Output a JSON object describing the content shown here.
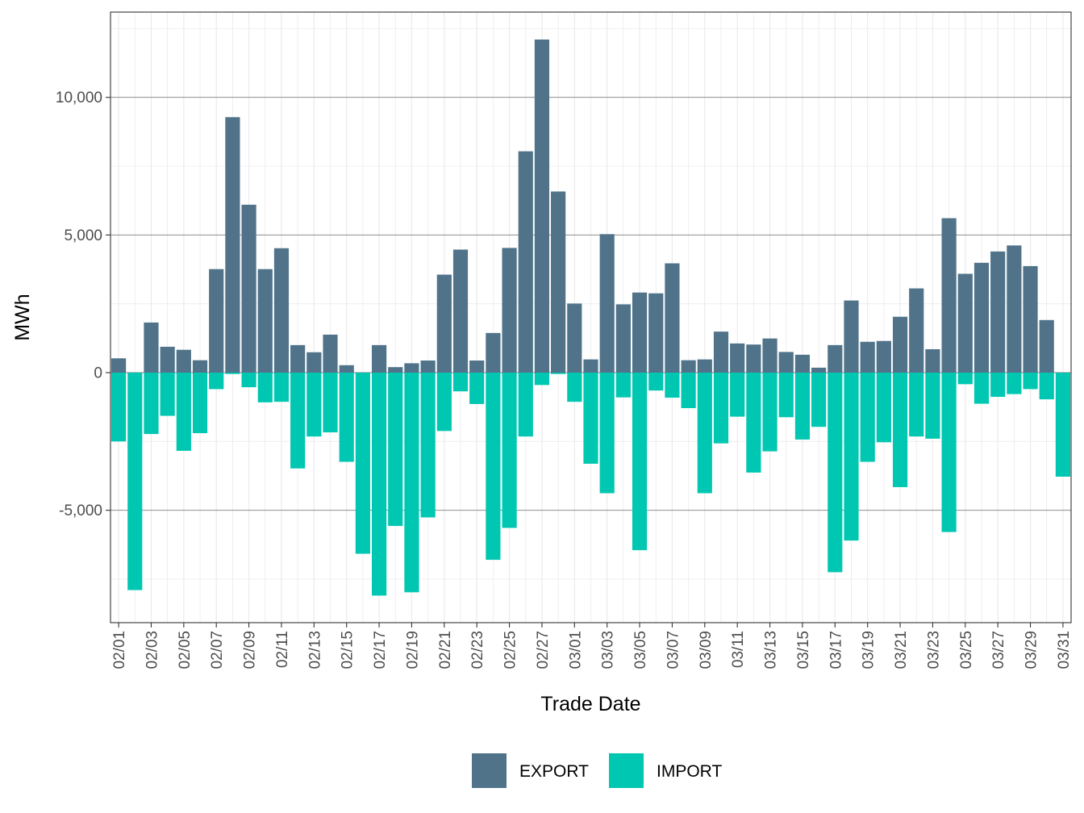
{
  "chart_data": {
    "type": "bar",
    "title": "",
    "xlabel": "Trade Date",
    "ylabel": "MWh",
    "ylim": [
      -9000,
      13000
    ],
    "y_ticks": [
      -5000,
      0,
      5000,
      10000
    ],
    "y_tick_labels": [
      "-5,000",
      "0",
      "5,000",
      "10,000"
    ],
    "categories": [
      "02/01",
      "02/02",
      "02/03",
      "02/04",
      "02/05",
      "02/06",
      "02/07",
      "02/08",
      "02/09",
      "02/10",
      "02/11",
      "02/12",
      "02/13",
      "02/14",
      "02/15",
      "02/16",
      "02/17",
      "02/18",
      "02/19",
      "02/20",
      "02/21",
      "02/22",
      "02/23",
      "02/24",
      "02/25",
      "02/26",
      "02/27",
      "02/28",
      "03/01",
      "03/02",
      "03/03",
      "03/04",
      "03/05",
      "03/06",
      "03/07",
      "03/08",
      "03/09",
      "03/10",
      "03/11",
      "03/12",
      "03/13",
      "03/14",
      "03/15",
      "03/16",
      "03/17",
      "03/18",
      "03/19",
      "03/20",
      "03/21",
      "03/22",
      "03/23",
      "03/24",
      "03/25",
      "03/26",
      "03/27",
      "03/28",
      "03/29",
      "03/30",
      "03/31"
    ],
    "x_tick_labels": [
      "02/01",
      "02/03",
      "02/05",
      "02/07",
      "02/09",
      "02/11",
      "02/13",
      "02/15",
      "02/17",
      "02/19",
      "02/21",
      "02/23",
      "02/25",
      "02/27",
      "03/01",
      "03/03",
      "03/05",
      "03/07",
      "03/09",
      "03/11",
      "03/13",
      "03/15",
      "03/17",
      "03/19",
      "03/21",
      "03/23",
      "03/25",
      "03/27",
      "03/29",
      "03/31"
    ],
    "grid": true,
    "legend_position": "bottom",
    "series": [
      {
        "name": "EXPORT",
        "color": "#50738a",
        "values": [
          520,
          0,
          1820,
          940,
          830,
          450,
          3760,
          9280,
          6100,
          3760,
          4520,
          1000,
          740,
          1380,
          270,
          0,
          1000,
          200,
          340,
          440,
          3560,
          4470,
          440,
          1440,
          4530,
          8040,
          12100,
          6580,
          2510,
          480,
          5030,
          2480,
          2910,
          2880,
          3970,
          450,
          480,
          1490,
          1060,
          1020,
          1240,
          750,
          650,
          180,
          1000,
          2620,
          1120,
          1150,
          2030,
          3060,
          850,
          5610,
          3590,
          3990,
          4400,
          4620,
          3870,
          1910,
          0
        ]
      },
      {
        "name": "IMPORT",
        "color": "#00c7b1",
        "values": [
          -2500,
          -7900,
          -2230,
          -1570,
          -2840,
          -2200,
          -600,
          -50,
          -530,
          -1080,
          -1060,
          -3480,
          -2320,
          -2170,
          -3240,
          -6580,
          -8100,
          -5570,
          -7980,
          -5260,
          -2120,
          -680,
          -1140,
          -6800,
          -5640,
          -2320,
          -450,
          -50,
          -1060,
          -3310,
          -4380,
          -900,
          -6450,
          -650,
          -910,
          -1290,
          -4380,
          -2570,
          -1600,
          -3630,
          -2860,
          -1620,
          -2430,
          -1970,
          -7250,
          -6100,
          -3240,
          -2530,
          -4160,
          -2320,
          -2400,
          -5790,
          -420,
          -1130,
          -880,
          -780,
          -600,
          -970,
          -3780
        ]
      }
    ]
  }
}
